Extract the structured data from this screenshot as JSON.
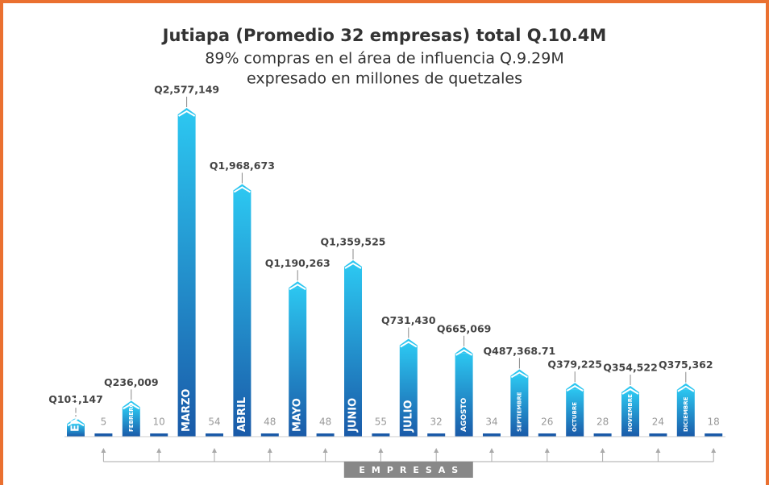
{
  "chart_data": {
    "type": "bar",
    "title": "Jutiapa (Promedio 32 empresas) total Q.10.4M",
    "subtitle": [
      "89% compras en el área de influencia Q.9.29M",
      "expresado en millones de quetzales"
    ],
    "categories": [
      "ENERO",
      "FEBRERO",
      "MARZO",
      "ABRIL",
      "MAYO",
      "JUNIO",
      "JULIO",
      "AGOSTO",
      "SEPTIEMBRE",
      "OCTUBRE",
      "NOVIEMBRE",
      "DICIEMBRE"
    ],
    "series": [
      {
        "color": "#1e8fd8",
        "values": [
          101147,
          236009,
          2577149,
          1968673,
          1190263,
          1359525,
          731430,
          665069,
          487368.71,
          379225,
          354522,
          375362
        ],
        "value_labels": [
          "Q101,147",
          "Q236,009",
          "Q2,577,149",
          "Q1,968,673",
          "Q1,190,263",
          "Q1,359,525",
          "Q731,430",
          "Q665,069",
          "Q487,368.71",
          "Q379,225",
          "Q354,522",
          "Q375,362"
        ]
      },
      {
        "name": "EMPRESAS",
        "color": "#1a5aa8",
        "values": [
          5,
          10,
          54,
          48,
          48,
          55,
          32,
          34,
          26,
          28,
          24,
          18
        ]
      }
    ]
  }
}
